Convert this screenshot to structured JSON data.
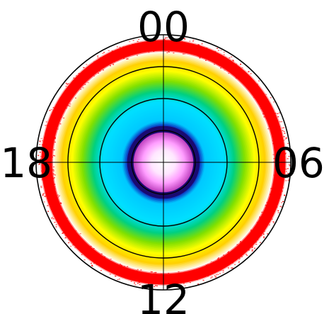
{
  "chart_data": {
    "type": "heatmap",
    "projection": "polar",
    "title": "",
    "xlabel": "",
    "ylabel": "",
    "angular_tick_labels": {
      "top": "00",
      "right": "06",
      "bottom": "12",
      "left": "18"
    },
    "radial_grid_fractions": [
      0.25,
      0.5,
      0.75,
      1.0
    ],
    "grid": true,
    "colorbar": false,
    "colormap": {
      "stops": [
        {
          "value": 0.0,
          "color": "#ffffff"
        },
        {
          "value": 0.1,
          "color": "#ff9dff"
        },
        {
          "value": 0.18,
          "color": "#e040e0"
        },
        {
          "value": 0.23,
          "color": "#2a0060"
        },
        {
          "value": 0.28,
          "color": "#1010b0"
        },
        {
          "value": 0.33,
          "color": "#00c8ff"
        },
        {
          "value": 0.48,
          "color": "#00e0ff"
        },
        {
          "value": 0.56,
          "color": "#00d080"
        },
        {
          "value": 0.64,
          "color": "#80e000"
        },
        {
          "value": 0.72,
          "color": "#ffff00"
        },
        {
          "value": 0.8,
          "color": "#ffd000"
        },
        {
          "value": 0.87,
          "color": "#ffffff"
        },
        {
          "value": 0.88,
          "color": "#ff0000"
        },
        {
          "value": 0.96,
          "color": "#ff0000"
        },
        {
          "value": 0.97,
          "color": "#ffffff"
        },
        {
          "value": 1.0,
          "color": "#ffffff"
        }
      ]
    },
    "ring_colors": {
      "cyan": "#00e0ff",
      "green": "#00d080",
      "yellow": "#ffff00",
      "red_dots": "#ff0000",
      "core_white": "#ffffff",
      "core_pink": "#ff9dff",
      "navy": "#1a0a70"
    }
  }
}
